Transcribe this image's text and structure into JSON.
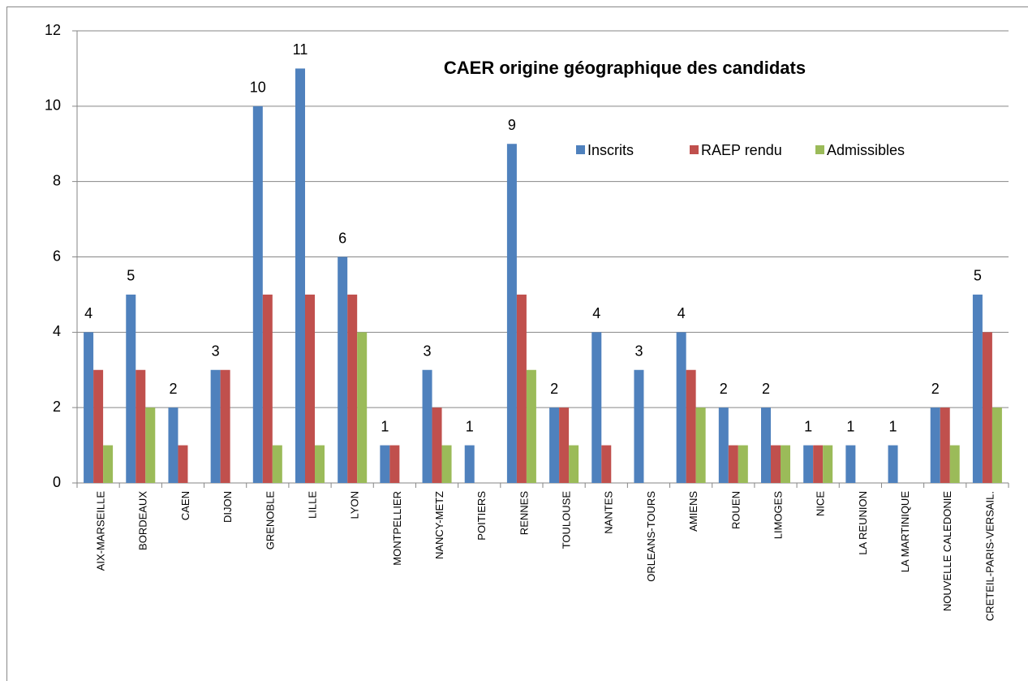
{
  "chart_data": {
    "type": "bar",
    "title": "CAER origine géographique  des candidats",
    "categories": [
      "AIX-MARSEILLE",
      "BORDEAUX",
      "CAEN",
      "DIJON",
      "GRENOBLE",
      "LILLE",
      "LYON",
      "MONTPELLIER",
      "NANCY-METZ",
      "POITIERS",
      "RENNES",
      "TOULOUSE",
      "NANTES",
      "ORLEANS-TOURS",
      "AMIENS",
      "ROUEN",
      "LIMOGES",
      "NICE",
      "LA REUNION",
      "LA MARTINIQUE",
      "NOUVELLE CALEDONIE",
      "CRETEIL-PARIS-VERSAIL."
    ],
    "series": [
      {
        "name": "Inscrits",
        "color": "#4f81bd",
        "data_labels": true,
        "values": [
          4,
          5,
          2,
          3,
          10,
          11,
          6,
          1,
          3,
          1,
          9,
          2,
          4,
          3,
          4,
          2,
          2,
          1,
          1,
          1,
          2,
          5
        ]
      },
      {
        "name": "RAEP rendu",
        "color": "#c0504d",
        "values": [
          3,
          3,
          1,
          3,
          5,
          5,
          5,
          1,
          2,
          0,
          5,
          2,
          1,
          0,
          3,
          1,
          1,
          1,
          0,
          0,
          2,
          4
        ]
      },
      {
        "name": "Admissibles",
        "color": "#9bbb59",
        "values": [
          1,
          2,
          0,
          0,
          1,
          1,
          4,
          0,
          1,
          0,
          3,
          1,
          0,
          0,
          2,
          1,
          1,
          1,
          0,
          0,
          1,
          2
        ]
      }
    ],
    "ylim": [
      0,
      12
    ],
    "yticks": [
      0,
      2,
      4,
      6,
      8,
      10,
      12
    ],
    "grid": true,
    "legend": "top-right"
  }
}
